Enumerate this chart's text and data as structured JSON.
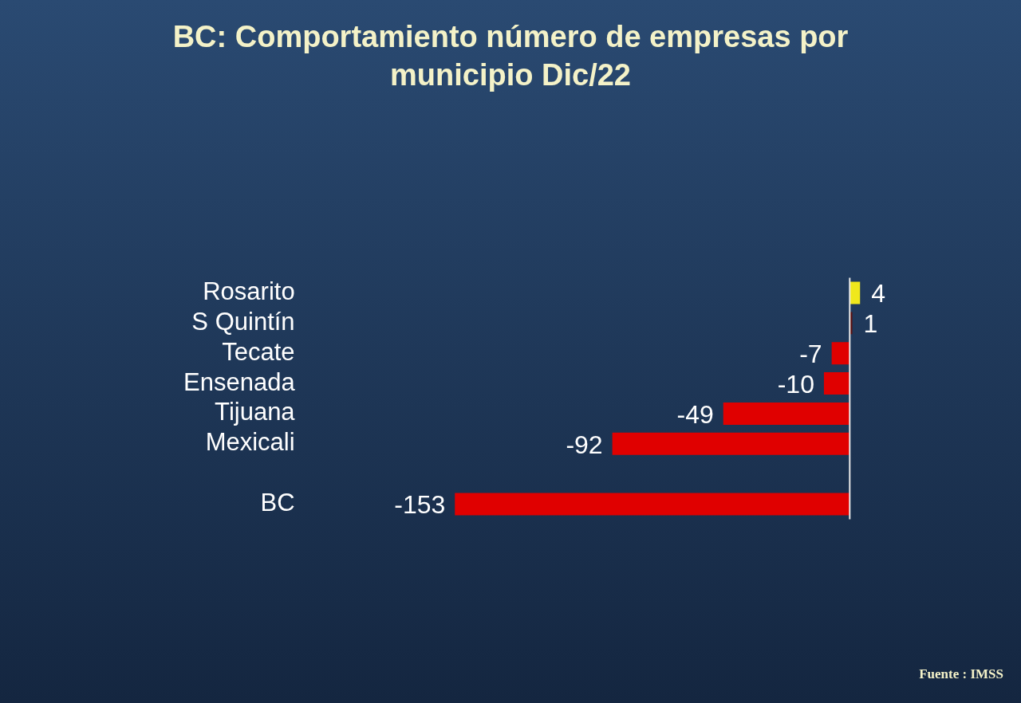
{
  "chart_data": {
    "type": "bar",
    "orientation": "horizontal",
    "title": "BC: Comportamiento número de empresas por municipio Dic/22",
    "categories": [
      "Rosarito",
      "S Quintín",
      "Tecate",
      "Ensenada",
      "Tijuana",
      "Mexicali",
      null,
      "BC"
    ],
    "values": [
      4,
      1,
      -7,
      -10,
      -49,
      -92,
      null,
      -153
    ],
    "colors": [
      "#f0e81c",
      "#5a1212",
      "#e00000",
      "#e00000",
      "#e00000",
      "#e00000",
      "#e00000",
      "#e00000"
    ],
    "data_labels": true,
    "annotations": [
      "Fuente : IMSS"
    ]
  }
}
